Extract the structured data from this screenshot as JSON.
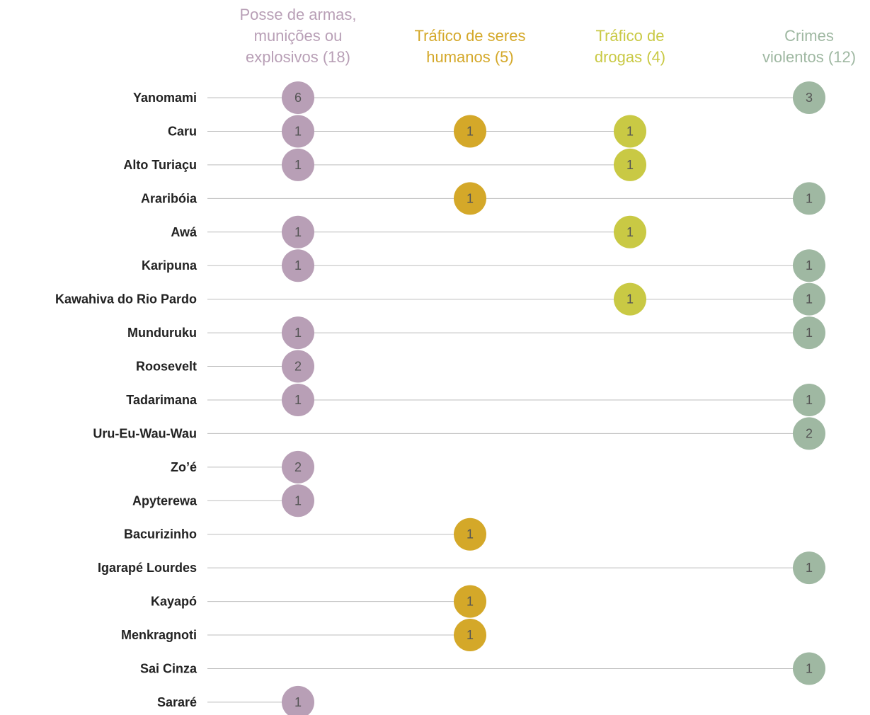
{
  "chart_data": {
    "type": "dot-matrix",
    "categories": [
      "Yanomami",
      "Caru",
      "Alto Turiaçu",
      "Araribóia",
      "Awá",
      "Karipuna",
      "Kawahiva do Rio Pardo",
      "Munduruku",
      "Roosevelt",
      "Tadarimana",
      "Uru-Eu-Wau-Wau",
      "Zo’é",
      "Apyterewa",
      "Bacurizinho",
      "Igarapé Lourdes",
      "Kayapó",
      "Menkragnoti",
      "Sai Cinza",
      "Sararé"
    ],
    "series": [
      {
        "name": "Posse de armas, munições ou explosivos (18)",
        "color": "#b89fb6",
        "values": [
          6,
          1,
          1,
          null,
          1,
          1,
          null,
          1,
          2,
          1,
          null,
          2,
          1,
          null,
          null,
          null,
          null,
          null,
          1
        ]
      },
      {
        "name": "Tráfico de seres humanos (5)",
        "color": "#d4a829",
        "values": [
          null,
          1,
          null,
          1,
          null,
          null,
          null,
          null,
          null,
          null,
          null,
          null,
          null,
          1,
          null,
          1,
          1,
          null,
          null
        ]
      },
      {
        "name": "Tráfico de drogas (4)",
        "color": "#c9c944",
        "values": [
          null,
          1,
          1,
          null,
          1,
          null,
          1,
          null,
          null,
          null,
          null,
          null,
          null,
          null,
          null,
          null,
          null,
          null,
          null
        ]
      },
      {
        "name": "Crimes violentos (12)",
        "color": "#9fb8a2",
        "values": [
          3,
          null,
          null,
          1,
          null,
          1,
          1,
          1,
          null,
          1,
          2,
          null,
          null,
          null,
          1,
          null,
          null,
          1,
          null
        ]
      }
    ]
  }
}
